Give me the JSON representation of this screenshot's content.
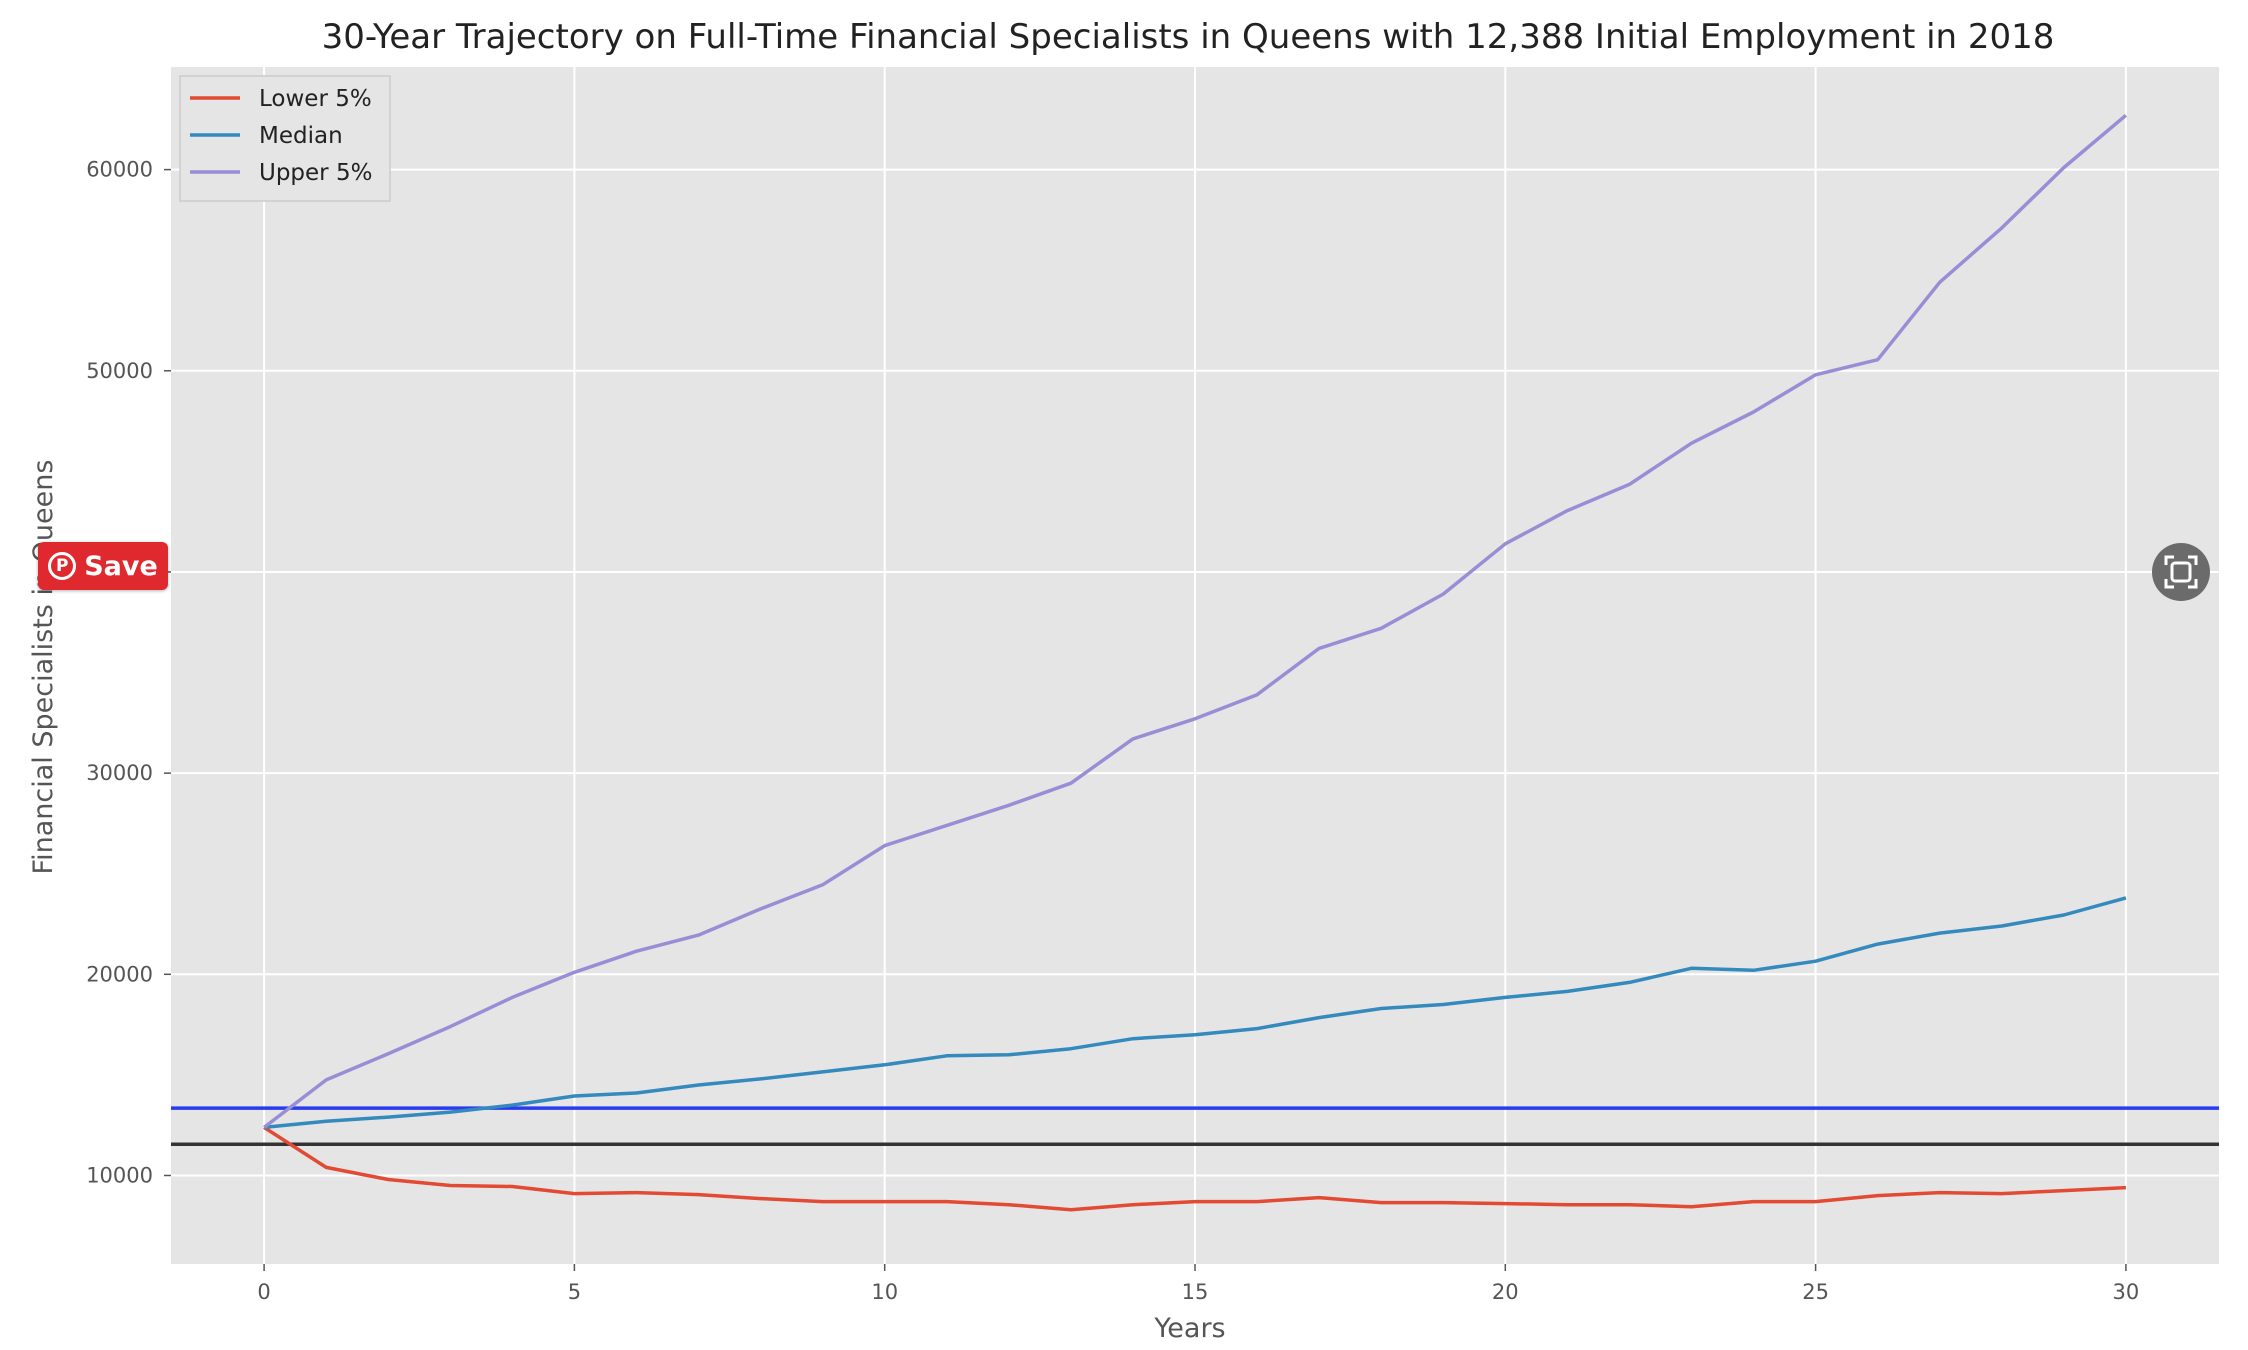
{
  "chart_data": {
    "type": "line",
    "title": "30-Year Trajectory on Full-Time Financial Specialists in Queens with 12,388 Initial Employment in 2018",
    "xlabel": "Years",
    "ylabel": "Financial Specialists in Queens",
    "xlim": [
      -1.5,
      31.5
    ],
    "ylim": [
      5600,
      65100
    ],
    "x_ticks": [
      0,
      5,
      10,
      15,
      20,
      25,
      30
    ],
    "y_ticks": [
      10000,
      20000,
      30000,
      40000,
      50000,
      60000
    ],
    "grid": true,
    "legend_position": "upper-left",
    "x": [
      0,
      1,
      2,
      3,
      4,
      5,
      6,
      7,
      8,
      9,
      10,
      11,
      12,
      13,
      14,
      15,
      16,
      17,
      18,
      19,
      20,
      21,
      22,
      23,
      24,
      25,
      26,
      27,
      28,
      29,
      30
    ],
    "series": [
      {
        "name": "Lower 5%",
        "color": "#e24a33",
        "values": [
          12388,
          10400,
          9800,
          9500,
          9450,
          9100,
          9150,
          9050,
          8850,
          8700,
          8700,
          8700,
          8550,
          8300,
          8550,
          8700,
          8700,
          8900,
          8650,
          8650,
          8600,
          8550,
          8550,
          8450,
          8700,
          8700,
          9000,
          9150,
          9100,
          9250,
          9400
        ]
      },
      {
        "name": "Median",
        "color": "#348abd",
        "values": [
          12388,
          12700,
          12900,
          13150,
          13500,
          13950,
          14100,
          14500,
          14800,
          15150,
          15500,
          15950,
          16000,
          16300,
          16800,
          17000,
          17300,
          17850,
          18300,
          18500,
          18850,
          19150,
          19600,
          20300,
          20200,
          20650,
          21500,
          22050,
          22400,
          22950,
          23800
        ]
      },
      {
        "name": "Upper 5%",
        "color": "#988ed5",
        "values": [
          12388,
          14750,
          16050,
          17400,
          18850,
          20100,
          21150,
          21950,
          23250,
          24450,
          26400,
          27400,
          28400,
          29500,
          31700,
          32700,
          33900,
          36200,
          37200,
          38900,
          41400,
          43050,
          44350,
          46400,
          47950,
          49800,
          50550,
          54400,
          57100,
          60100,
          62700
        ]
      }
    ],
    "reference_lines": [
      {
        "color": "#2b3bf0",
        "value": 13350
      },
      {
        "color": "#333333",
        "value": 11550
      }
    ]
  },
  "overlay": {
    "save_label": "Save",
    "save_icon": "pinterest-icon",
    "expand_icon": "expand-icon"
  }
}
